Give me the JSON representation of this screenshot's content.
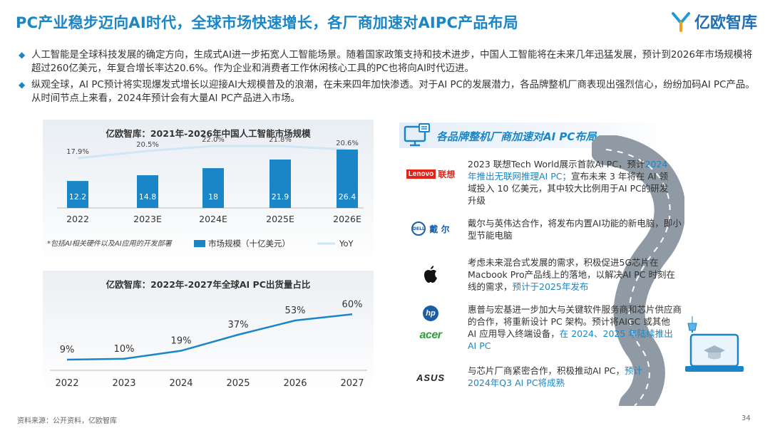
{
  "title": "PC产业稳步迈向AI时代，全球市场快速增长，各厂商加速对AIPC产品布局",
  "logo_text": "亿欧智库",
  "bullets": [
    "人工智能是全球科技发展的确定方向，生成式AI进一步拓宽人工智能场景。随着国家政策支持和技术进步，中国人工智能将在未来几年迅猛发展，预计到2026年市场规模将超过260亿美元，年复合增长率达20.6%。作为企业和消费者工作休闲核心工具的PC也将向AI时代迈进。",
    "纵观全球，AI PC预计将实现爆发式增长以迎接AI大规模普及的浪潮，在未来四年加快渗透。对于AI PC的发展潜力，各品牌整机厂商表现出强烈信心，纷纷加码AI PC产品。从时间节点上来看，2024年预计会有大量AI PC产品进入市场。"
  ],
  "chart_data": [
    {
      "type": "bar",
      "title": "亿欧智库：2021年-2026年中国人工智能市场规模",
      "categories": [
        "2022",
        "2023E",
        "2024E",
        "2025E",
        "2026E"
      ],
      "series": [
        {
          "name": "市场规模（十亿美元）",
          "type": "bar",
          "values": [
            12.2,
            14.8,
            18,
            21.9,
            26.4
          ]
        },
        {
          "name": "YoY",
          "type": "line",
          "values": [
            "17.9%",
            "20.5%",
            "22.0%",
            "21.8%",
            "20.6%"
          ]
        }
      ],
      "note": "*包括AI相关硬件以及AI应用的开发部署",
      "ylim": [
        0,
        30
      ]
    },
    {
      "type": "line",
      "title": "亿欧智库：2022年-2027年全球AI PC出货量占比",
      "categories": [
        "2022",
        "2023",
        "2024",
        "2025",
        "2026",
        "2027"
      ],
      "values": [
        9,
        10,
        19,
        37,
        53,
        60
      ],
      "labels": [
        "9%",
        "10%",
        "19%",
        "37%",
        "53%",
        "60%"
      ],
      "ylim": [
        0,
        70
      ]
    }
  ],
  "colors": {
    "accent": "#1a86c8",
    "bar": "#1a86c8",
    "yoy_line": "#cfe6f5"
  },
  "right_panel": {
    "title": "各品牌整机厂商加速对AI PC布局",
    "brands": [
      {
        "logo": "Lenovo联想",
        "logo_box": "Lenovo",
        "logo_cn": "联想",
        "text_pre": "2023 联想Tech World展示首款AI PC，预计",
        "text_hl": "2024年推出无联网推理AI PC；",
        "text_post": "宣布未来 3 年将在 AI 领域投入 10 亿美元，其中较大比例用于AI PC的研发升级"
      },
      {
        "logo": "DELL 戴尔",
        "logo_ring": "DELL",
        "logo_cn": "戴 尔",
        "text_pre": "戴尔与英伟达合作，将发布内置AI功能的新电脑，即小型节能电脑",
        "text_hl": "",
        "text_post": ""
      },
      {
        "logo": "apple-icon",
        "text_pre": "考虑未来混合式发展的需求，积极促进5G芯片在Macbook Pro产品线上的落地，以解决AI PC 时刻在线的需求，",
        "text_hl": "预计于2025年发布",
        "text_post": ""
      },
      {
        "logo": "hp acer",
        "logo_hp": "hp",
        "logo_acer": "acer",
        "text_pre": "惠普与宏基进一步加大与关键软件服务商和芯片供应商的合作，将重新设计 PC 架构。预计将AIGC 或其他 AI 应用导入终端设备，",
        "text_hl": "在 2024、2025 年陆续推出AI PC",
        "text_post": ""
      },
      {
        "logo": "ASUS",
        "text_pre": "与芯片厂商紧密合作，积极推动AI PC，",
        "text_hl": "预计2024年Q3 AI PC将成熟",
        "text_post": ""
      }
    ]
  },
  "source": "资料来源：公开资料，亿欧智库",
  "page_number": "34"
}
